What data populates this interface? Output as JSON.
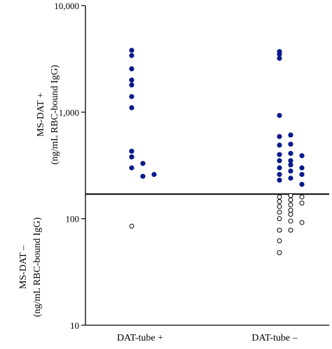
{
  "chart_data": {
    "type": "scatter",
    "y_scale": "log",
    "ylim": [
      10,
      10000
    ],
    "y_ticks": [
      "10",
      "100",
      "1,000",
      "10,000"
    ],
    "y_tick_values": [
      10,
      100,
      1000,
      10000
    ],
    "categories": [
      "DAT-tube +",
      "DAT-tube –"
    ],
    "ylabel_upper": [
      "MS-DAT +",
      "(ng/mL RBC-bound IgG)"
    ],
    "ylabel_lower": [
      "MS-DAT –",
      "(ng/mL RBC-bound IgG)"
    ],
    "threshold": 170,
    "positive_color": "#0a1a8c",
    "negative_color": "#ffffff",
    "series": [
      {
        "category": "DAT-tube +",
        "points": [
          {
            "x": 0,
            "y": 3800,
            "filled": true
          },
          {
            "x": 0,
            "y": 3400,
            "filled": true
          },
          {
            "x": 0,
            "y": 2550,
            "filled": true
          },
          {
            "x": 0,
            "y": 2000,
            "filled": true
          },
          {
            "x": 0,
            "y": 1800,
            "filled": true
          },
          {
            "x": 0,
            "y": 1400,
            "filled": true
          },
          {
            "x": 0,
            "y": 1100,
            "filled": true
          },
          {
            "x": 0,
            "y": 430,
            "filled": true
          },
          {
            "x": 0,
            "y": 380,
            "filled": true
          },
          {
            "x": 0,
            "y": 300,
            "filled": true
          },
          {
            "x": 1,
            "y": 330,
            "filled": true
          },
          {
            "x": 1,
            "y": 250,
            "filled": true
          },
          {
            "x": 2,
            "y": 260,
            "filled": true
          },
          {
            "x": 0,
            "y": 85,
            "filled": false
          }
        ]
      },
      {
        "category": "DAT-tube –",
        "points": [
          {
            "x": 0,
            "y": 3700,
            "filled": true
          },
          {
            "x": 0,
            "y": 3500,
            "filled": true
          },
          {
            "x": 0,
            "y": 3200,
            "filled": true
          },
          {
            "x": 0,
            "y": 930,
            "filled": true
          },
          {
            "x": 0,
            "y": 590,
            "filled": true
          },
          {
            "x": 0,
            "y": 490,
            "filled": true
          },
          {
            "x": 0,
            "y": 400,
            "filled": true
          },
          {
            "x": 0,
            "y": 350,
            "filled": true
          },
          {
            "x": 0,
            "y": 300,
            "filled": true
          },
          {
            "x": 0,
            "y": 260,
            "filled": true
          },
          {
            "x": 0,
            "y": 230,
            "filled": true
          },
          {
            "x": 1,
            "y": 610,
            "filled": true
          },
          {
            "x": 1,
            "y": 500,
            "filled": true
          },
          {
            "x": 1,
            "y": 410,
            "filled": true
          },
          {
            "x": 1,
            "y": 350,
            "filled": true
          },
          {
            "x": 1,
            "y": 320,
            "filled": true
          },
          {
            "x": 1,
            "y": 280,
            "filled": true
          },
          {
            "x": 1,
            "y": 240,
            "filled": true
          },
          {
            "x": 2,
            "y": 390,
            "filled": true
          },
          {
            "x": 2,
            "y": 300,
            "filled": true
          },
          {
            "x": 2,
            "y": 260,
            "filled": true
          },
          {
            "x": 2,
            "y": 210,
            "filled": true
          },
          {
            "x": 0,
            "y": 160,
            "filled": false
          },
          {
            "x": 0,
            "y": 145,
            "filled": false
          },
          {
            "x": 0,
            "y": 130,
            "filled": false
          },
          {
            "x": 0,
            "y": 115,
            "filled": false
          },
          {
            "x": 0,
            "y": 100,
            "filled": false
          },
          {
            "x": 0,
            "y": 78,
            "filled": false
          },
          {
            "x": 0,
            "y": 62,
            "filled": false
          },
          {
            "x": 0,
            "y": 48,
            "filled": false
          },
          {
            "x": 1,
            "y": 165,
            "filled": false
          },
          {
            "x": 1,
            "y": 150,
            "filled": false
          },
          {
            "x": 1,
            "y": 135,
            "filled": false
          },
          {
            "x": 1,
            "y": 120,
            "filled": false
          },
          {
            "x": 1,
            "y": 110,
            "filled": false
          },
          {
            "x": 1,
            "y": 95,
            "filled": false
          },
          {
            "x": 1,
            "y": 78,
            "filled": false
          },
          {
            "x": 2,
            "y": 160,
            "filled": false
          },
          {
            "x": 2,
            "y": 140,
            "filled": false
          },
          {
            "x": 2,
            "y": 92,
            "filled": false
          }
        ]
      }
    ]
  }
}
